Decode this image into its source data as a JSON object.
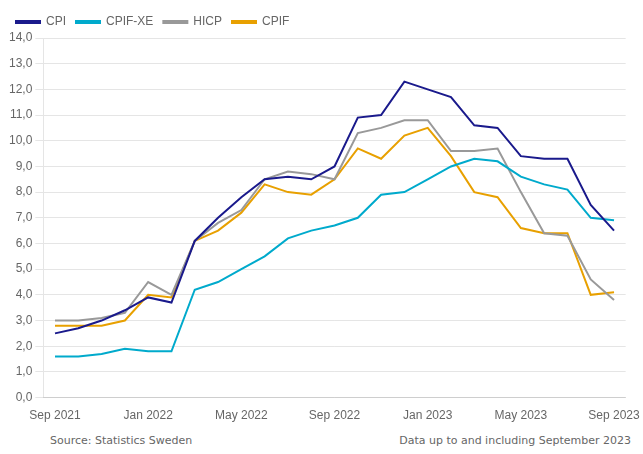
{
  "chart_data": {
    "type": "line",
    "annotations": [
      "Source: Statistics Sweden",
      "Data up to and including September 2023"
    ],
    "categories": [
      "Sep 2021",
      null,
      null,
      null,
      "Jan 2022",
      null,
      null,
      null,
      "May 2022",
      null,
      null,
      null,
      "Sep 2022",
      null,
      null,
      null,
      "Jan 2023",
      null,
      null,
      null,
      "May 2023",
      null,
      null,
      null,
      "Sep 2023"
    ],
    "series": [
      {
        "name": "CPI",
        "color": "#1a1a8c",
        "values": [
          2.5,
          2.7,
          3.0,
          3.4,
          3.9,
          3.7,
          6.1,
          7.0,
          7.8,
          8.5,
          8.6,
          8.5,
          9.0,
          10.9,
          11.0,
          12.3,
          12.0,
          11.7,
          10.6,
          10.5,
          9.4,
          9.3,
          9.3,
          7.5,
          6.5
        ]
      },
      {
        "name": "CPIF-XE",
        "color": "#00aacc",
        "values": [
          1.6,
          1.6,
          1.7,
          1.9,
          1.8,
          1.8,
          4.2,
          4.5,
          5.0,
          5.5,
          6.2,
          6.5,
          6.7,
          7.0,
          7.9,
          8.0,
          8.5,
          9.0,
          9.3,
          9.2,
          8.6,
          8.3,
          8.1,
          7.0,
          6.9
        ]
      },
      {
        "name": "HICP",
        "color": "#999999",
        "values": [
          3.0,
          3.0,
          3.1,
          3.3,
          4.5,
          4.0,
          6.1,
          6.8,
          7.3,
          8.5,
          8.8,
          8.7,
          8.5,
          10.3,
          10.5,
          10.8,
          10.8,
          9.6,
          9.6,
          9.7,
          8.0,
          6.4,
          6.3,
          4.6,
          3.8
        ]
      },
      {
        "name": "CPIF",
        "color": "#e8a000",
        "values": [
          2.8,
          2.8,
          2.8,
          3.0,
          4.0,
          3.9,
          6.1,
          6.5,
          7.2,
          8.3,
          8.0,
          7.9,
          8.5,
          9.7,
          9.3,
          10.2,
          10.5,
          9.4,
          8.0,
          7.8,
          6.6,
          6.4,
          6.4,
          4.0,
          4.1
        ]
      }
    ],
    "ylim": [
      0.0,
      14.0
    ],
    "yticks": [
      {
        "value": 0.0,
        "label": "0,0"
      },
      {
        "value": 1.0,
        "label": "1,0"
      },
      {
        "value": 2.0,
        "label": "2,0"
      },
      {
        "value": 3.0,
        "label": "3,0"
      },
      {
        "value": 4.0,
        "label": "4,0"
      },
      {
        "value": 5.0,
        "label": "5,0"
      },
      {
        "value": 6.0,
        "label": "6,0"
      },
      {
        "value": 7.0,
        "label": "7,0"
      },
      {
        "value": 8.0,
        "label": "8,0"
      },
      {
        "value": 9.0,
        "label": "9,0"
      },
      {
        "value": 10.0,
        "label": "10,0"
      },
      {
        "value": 11.0,
        "label": "11,0"
      },
      {
        "value": 12.0,
        "label": "12,0"
      },
      {
        "value": 13.0,
        "label": "13,0"
      },
      {
        "value": 14.0,
        "label": "14,0"
      }
    ],
    "grid": true,
    "legend": "upper left"
  }
}
